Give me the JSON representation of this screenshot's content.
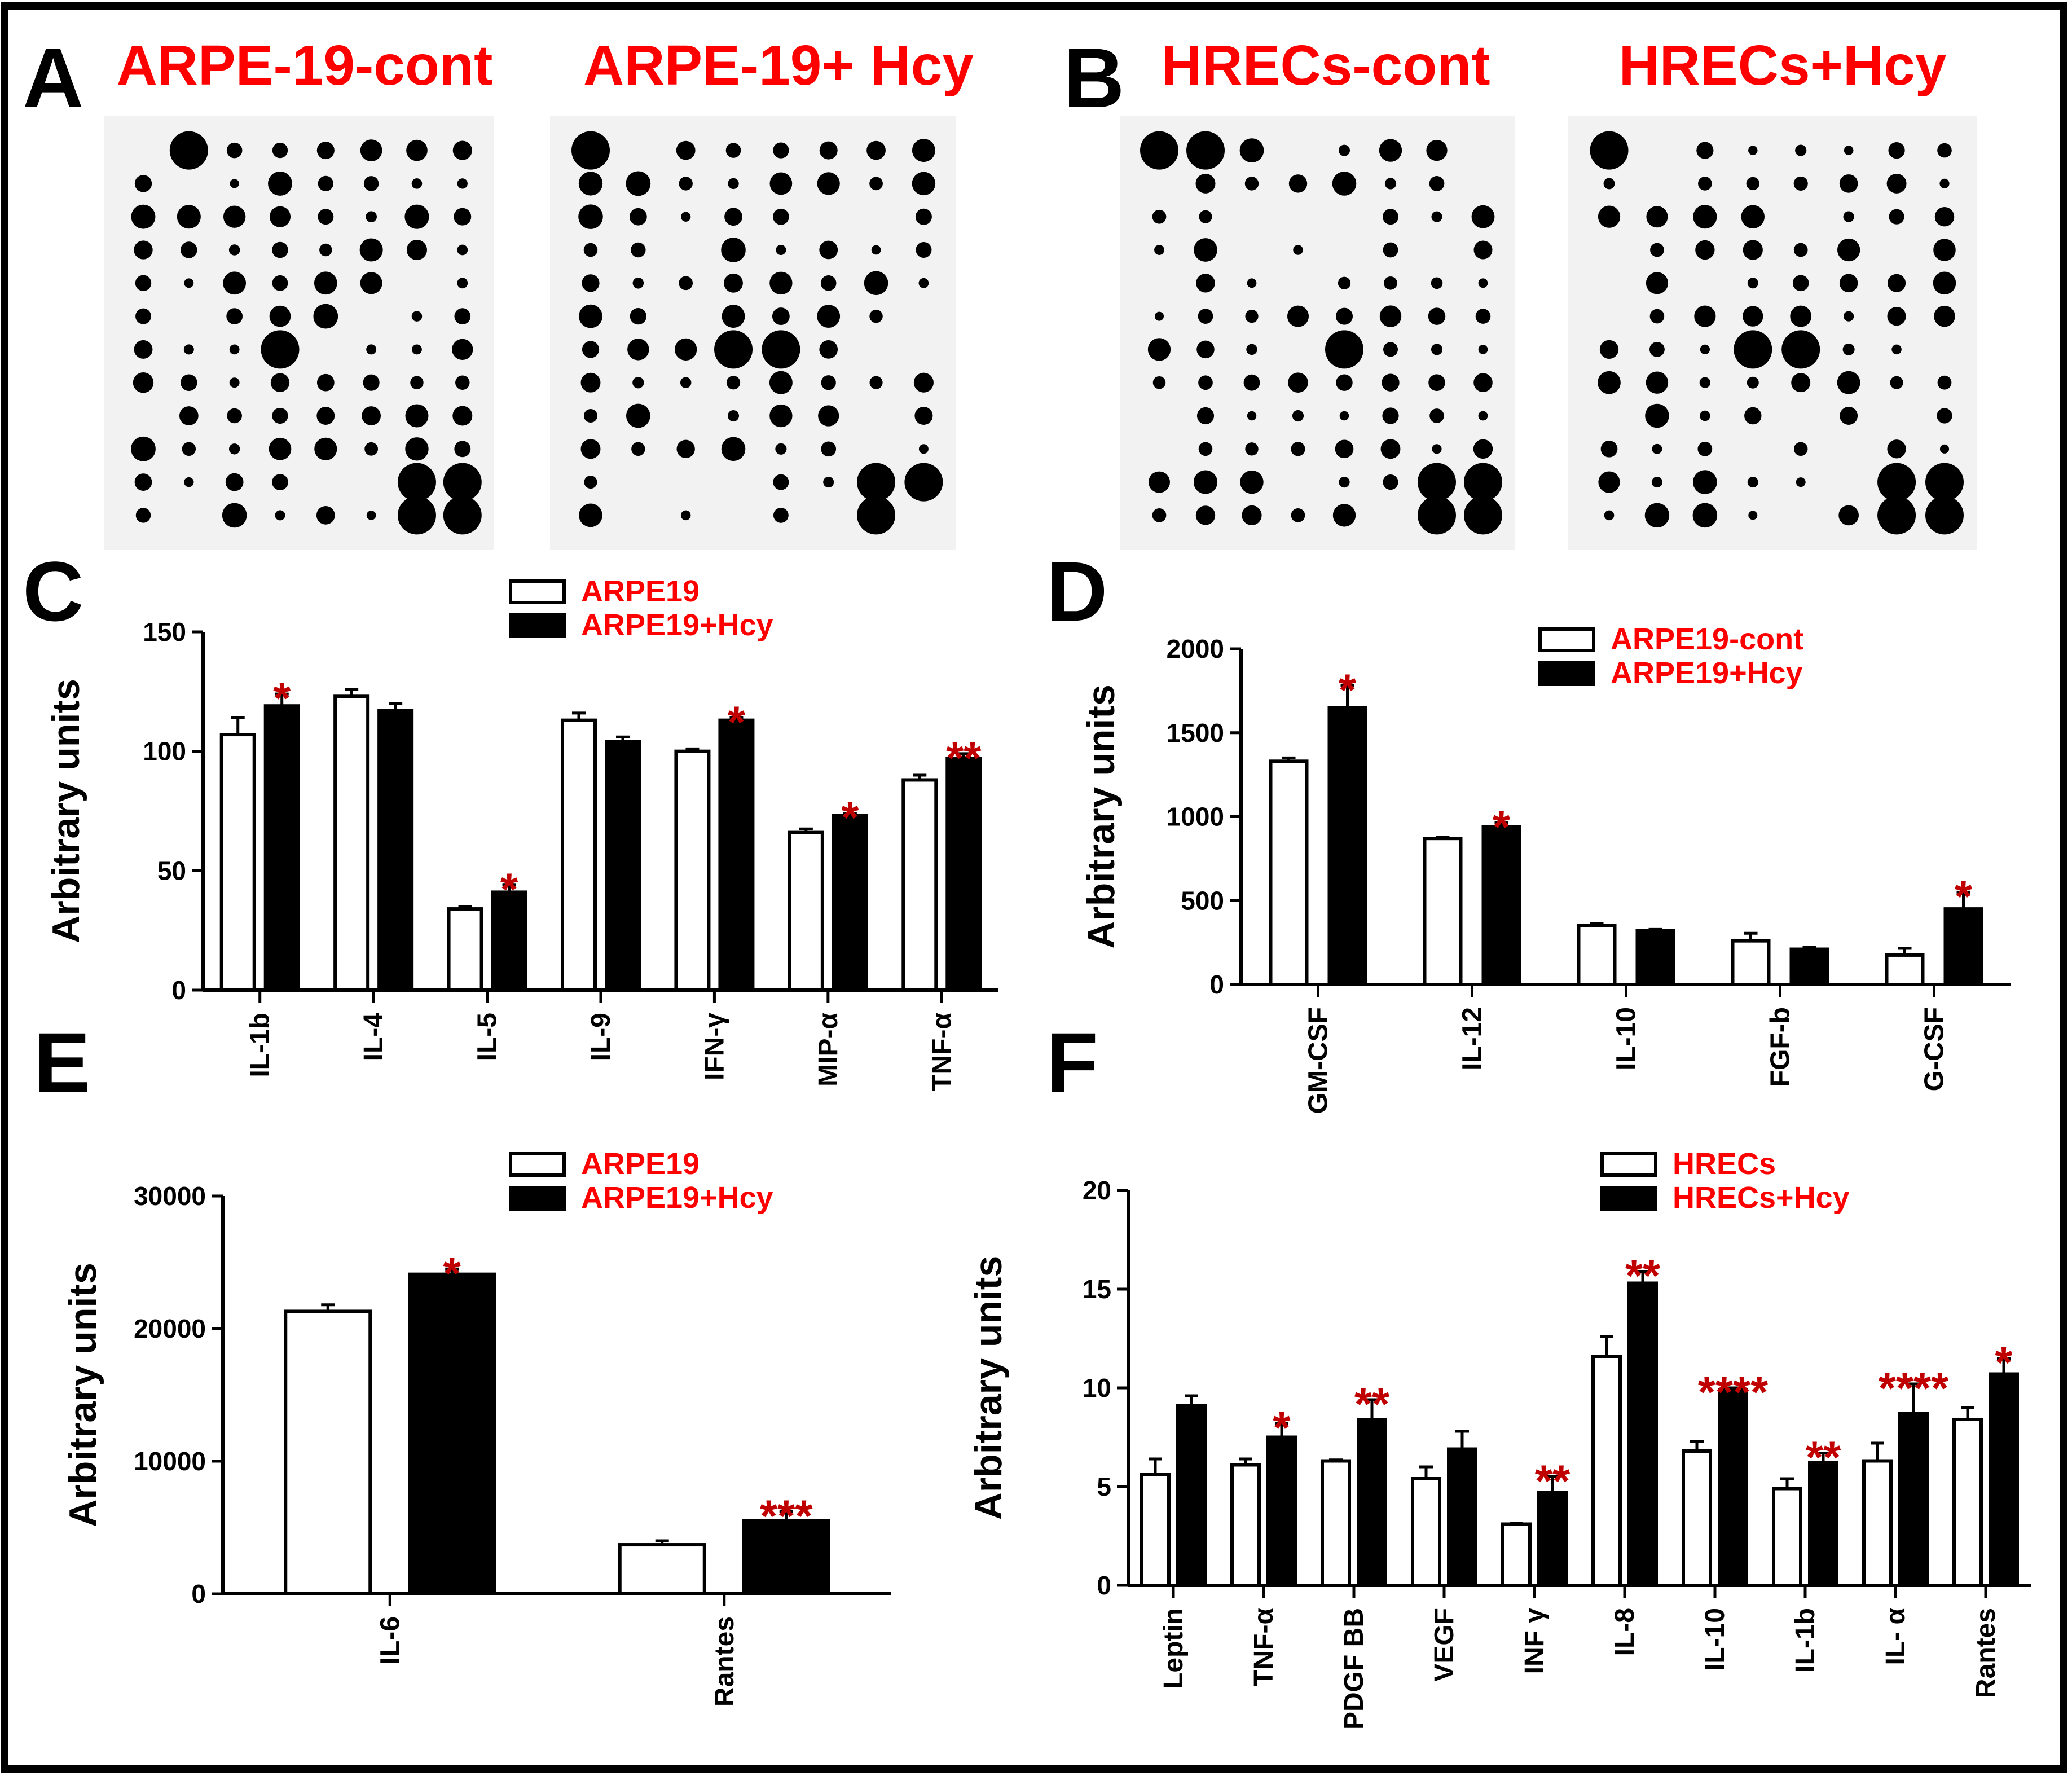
{
  "figure": {
    "colors": {
      "star": "#c00000",
      "legend": "#ff0000",
      "bar_open": "#ffffff",
      "bar_filled": "#000000",
      "dark_label": "#3a1c1c"
    }
  },
  "blots": {
    "letter_a": "A",
    "letter_b": "B",
    "titles": [
      "ARPE-19-cont",
      "ARPE-19+ Hcy",
      "HRECs-cont",
      "HRECs+Hcy"
    ]
  },
  "chart_data": [
    {
      "panel": "C",
      "type": "bar",
      "ylabel": "Arbitrary units",
      "ylim": [
        0,
        150
      ],
      "yticks": [
        0,
        50,
        100,
        150
      ],
      "categories": [
        "IL-1b",
        "IL-4",
        "IL-5",
        "IL-9",
        "IFN-γ",
        "MIP-α",
        "TNF-α"
      ],
      "series": [
        {
          "name": "ARPE19",
          "values": [
            107,
            123,
            34,
            113,
            100,
            66,
            88
          ],
          "errors": [
            7,
            3,
            1,
            3,
            1,
            1.5,
            2
          ]
        },
        {
          "name": "ARPE19+Hcy",
          "values": [
            119,
            117,
            41,
            104,
            113,
            73,
            97
          ],
          "errors": [
            5,
            3,
            3,
            2,
            1,
            1,
            2
          ]
        }
      ],
      "significance": [
        "*",
        "",
        "*",
        "",
        "*",
        "*",
        "**"
      ]
    },
    {
      "panel": "D",
      "type": "bar",
      "ylabel": "Arbitrary units",
      "ylim": [
        0,
        2000
      ],
      "yticks": [
        0,
        500,
        1000,
        1500,
        2000
      ],
      "categories": [
        "GM-CSF",
        "IL-12",
        "IL-10",
        "FGF-b",
        "G-CSF"
      ],
      "series": [
        {
          "name": "ARPE19-cont",
          "values": [
            1330,
            870,
            350,
            260,
            175
          ],
          "errors": [
            20,
            8,
            12,
            45,
            40
          ]
        },
        {
          "name": "ARPE19+Hcy",
          "values": [
            1650,
            940,
            320,
            210,
            450
          ],
          "errors": [
            130,
            25,
            8,
            10,
            100
          ]
        }
      ],
      "significance": [
        "*",
        "*",
        "",
        "",
        "*"
      ]
    },
    {
      "panel": "E",
      "type": "bar",
      "ylabel": "Arbitrary units",
      "ylim": [
        0,
        30000
      ],
      "yticks": [
        0,
        10000,
        20000,
        30000
      ],
      "categories": [
        "IL-6",
        "Rantes"
      ],
      "series": [
        {
          "name": "ARPE19",
          "values": [
            21300,
            3700
          ],
          "errors": [
            500,
            300
          ]
        },
        {
          "name": "ARPE19+Hcy",
          "values": [
            24100,
            5500
          ],
          "errors": [
            400,
            700
          ]
        }
      ],
      "significance": [
        "*",
        "***"
      ]
    },
    {
      "panel": "F",
      "type": "bar",
      "ylabel": "Arbitrary units",
      "ylim": [
        0,
        20
      ],
      "yticks": [
        0,
        5,
        10,
        15,
        20
      ],
      "categories": [
        "Leptin",
        "TNF-α",
        "PDGF BB",
        "VEGF",
        "INF γ",
        "IL-8",
        "IL-10",
        "IL-1b",
        "IL- α",
        "Rantes"
      ],
      "dark_categories": [
        "INF γ",
        "IL- α"
      ],
      "series": [
        {
          "name": "HRECs",
          "values": [
            5.6,
            6.1,
            6.3,
            5.4,
            3.1,
            11.6,
            6.8,
            4.9,
            6.3,
            8.4
          ],
          "errors": [
            0.8,
            0.3,
            0.05,
            0.6,
            0.05,
            1.0,
            0.5,
            0.5,
            0.9,
            0.6
          ]
        },
        {
          "name": "HRECs+Hcy",
          "values": [
            9.1,
            7.5,
            8.4,
            6.9,
            4.7,
            15.3,
            9.9,
            6.2,
            8.7,
            10.7
          ],
          "errors": [
            0.5,
            0.7,
            1.0,
            0.9,
            0.8,
            0.6,
            0.1,
            0.5,
            1.5,
            0.8
          ]
        }
      ],
      "significance": [
        "",
        "*",
        "**",
        "",
        "**",
        "**",
        "****",
        "**",
        "****",
        "*"
      ]
    }
  ]
}
